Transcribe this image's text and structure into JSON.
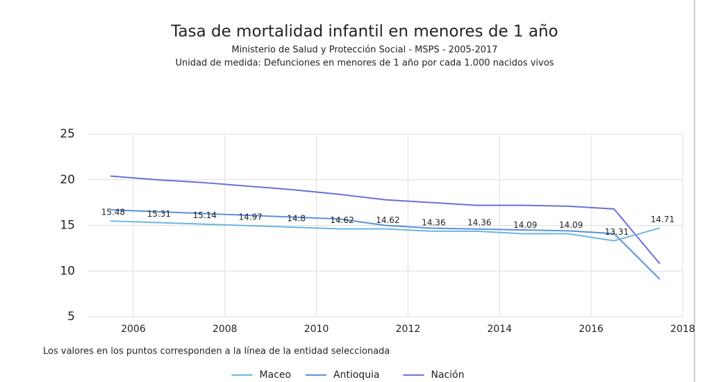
{
  "chart_data": {
    "type": "line",
    "title": "Tasa de mortalidad infantil en menores de 1 año",
    "subtitle": "Ministerio de Salud y Protección Social - MSPS - 2005-2017",
    "unit_note": "Unidad de medida: Defunciones en menores de 1 año por cada 1.000 nacidos vivos",
    "footnote": "Los valores en los puntos corresponden a la línea de la entidad seleccionada",
    "x": [
      2005.5,
      2006.5,
      2007.5,
      2008.5,
      2009.5,
      2010.5,
      2011.5,
      2012.5,
      2013.5,
      2014.5,
      2015.5,
      2016.5,
      2017.5
    ],
    "series": [
      {
        "name": "Maceo",
        "color": "#6cb4e4",
        "values": [
          15.48,
          15.31,
          15.14,
          14.97,
          14.8,
          14.62,
          14.62,
          14.36,
          14.36,
          14.09,
          14.09,
          13.31,
          14.71
        ],
        "data_labels": true
      },
      {
        "name": "Antioquia",
        "color": "#5b8fd9",
        "values": [
          16.7,
          16.5,
          16.3,
          16.1,
          15.9,
          15.7,
          15.0,
          14.7,
          14.6,
          14.5,
          14.4,
          14.1,
          9.1
        ]
      },
      {
        "name": "Nación",
        "color": "#6b6fd8",
        "values": [
          20.4,
          20.0,
          19.7,
          19.3,
          18.9,
          18.4,
          17.8,
          17.5,
          17.2,
          17.2,
          17.1,
          16.8,
          10.8
        ]
      }
    ],
    "xlim": [
      2005,
      2018
    ],
    "xticks": [
      2006,
      2008,
      2010,
      2012,
      2014,
      2016,
      2018
    ],
    "ylim": [
      5,
      25
    ],
    "yticks": [
      5,
      10,
      15,
      20,
      25
    ],
    "grid": true,
    "legend": "bottom"
  }
}
